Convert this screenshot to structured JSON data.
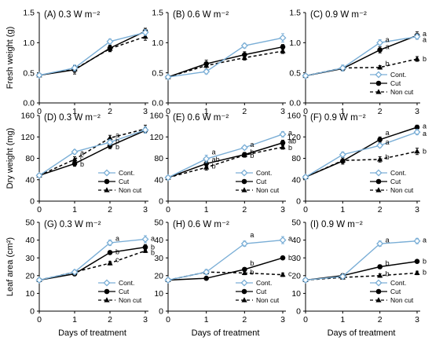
{
  "chart_data": {
    "type": "line",
    "colors": {
      "Cont.": "#7aaed6",
      "Cut": "#000000",
      "Non cut": "#000000"
    },
    "shared_x": {
      "x": [
        0,
        1,
        2,
        3
      ],
      "tick_labels": [
        "0",
        "1",
        "2",
        "3"
      ],
      "label": "Days of treatment",
      "xlim": [
        0,
        3
      ]
    },
    "legend": {
      "entries": [
        "Cont.",
        "Cut",
        "Non cut"
      ],
      "position": "bottom-right"
    },
    "rows": [
      {
        "ylabel": "Fresh weight (g)",
        "ylim": [
          0,
          1.5
        ],
        "yticks": [
          "0.0",
          "0.5",
          "1.0",
          "1.5"
        ],
        "ytick_values": [
          0,
          0.5,
          1.0,
          1.5
        ]
      },
      {
        "ylabel": "Dry weight (mg)",
        "ylim": [
          0,
          160
        ],
        "yticks": [
          "0",
          "40",
          "80",
          "120",
          "160"
        ],
        "ytick_values": [
          0,
          40,
          80,
          120,
          160
        ]
      },
      {
        "ylabel": "Leaf area (cm²)",
        "ylim": [
          0,
          50
        ],
        "yticks": [
          "0",
          "10",
          "20",
          "30",
          "40",
          "50"
        ],
        "ytick_values": [
          0,
          10,
          20,
          30,
          40,
          50
        ]
      }
    ],
    "panels": [
      {
        "id": "A",
        "title": "(A) 0.3 W m⁻²",
        "row": 0,
        "col": 0,
        "legend": false,
        "series": [
          {
            "name": "Cont.",
            "values": [
              0.46,
              0.58,
              1.02,
              1.17
            ],
            "err": [
              0.02,
              0.05,
              0.04,
              0.05
            ]
          },
          {
            "name": "Cut",
            "values": [
              0.46,
              0.55,
              0.91,
              1.19
            ],
            "err": [
              0.02,
              0.07,
              0.05,
              0.05
            ]
          },
          {
            "name": "Non cut",
            "values": [
              0.46,
              0.56,
              0.9,
              1.1
            ],
            "err": [
              0.02,
              0.05,
              0.05,
              0.06
            ]
          }
        ],
        "sig": []
      },
      {
        "id": "B",
        "title": "(B) 0.6 W m⁻²",
        "row": 0,
        "col": 1,
        "legend": false,
        "series": [
          {
            "name": "Cont.",
            "values": [
              0.43,
              0.52,
              0.95,
              1.08
            ],
            "err": [
              0.02,
              0.04,
              0.04,
              0.07
            ]
          },
          {
            "name": "Cut",
            "values": [
              0.43,
              0.65,
              0.8,
              0.93
            ],
            "err": [
              0.02,
              0.06,
              0.05,
              0.04
            ]
          },
          {
            "name": "Non cut",
            "values": [
              0.43,
              0.62,
              0.75,
              0.86
            ],
            "err": [
              0.02,
              0.06,
              0.04,
              0.04
            ]
          }
        ],
        "sig": []
      },
      {
        "id": "C",
        "title": "(C) 0.9 W m⁻²",
        "row": 0,
        "col": 2,
        "legend": true,
        "series": [
          {
            "name": "Cont.",
            "values": [
              0.45,
              0.58,
              1.0,
              1.1
            ],
            "err": [
              0.02,
              0.05,
              0.05,
              0.04
            ]
          },
          {
            "name": "Cut",
            "values": [
              0.45,
              0.57,
              0.88,
              1.12
            ],
            "err": [
              0.02,
              0.04,
              0.05,
              0.06
            ]
          },
          {
            "name": "Non cut",
            "values": [
              0.45,
              0.58,
              0.59,
              0.73
            ],
            "err": [
              0.02,
              0.03,
              0.03,
              0.04
            ]
          }
        ],
        "sig": [
          {
            "label": "a",
            "x": 2,
            "y": 1.05
          },
          {
            "label": "a",
            "x": 2,
            "y": 0.93
          },
          {
            "label": "b",
            "x": 2,
            "y": 0.65
          },
          {
            "label": "a",
            "x": 3,
            "y": 1.15
          },
          {
            "label": "a",
            "x": 3,
            "y": 1.05
          },
          {
            "label": "b",
            "x": 3,
            "y": 0.73
          }
        ]
      },
      {
        "id": "D",
        "title": "(D) 0.3 W m⁻²",
        "row": 1,
        "col": 0,
        "legend": true,
        "series": [
          {
            "name": "Cont.",
            "values": [
              48,
              92,
              110,
              133
            ],
            "err": [
              2,
              4,
              5,
              6
            ]
          },
          {
            "name": "Cut",
            "values": [
              48,
              70,
              103,
              132
            ],
            "err": [
              2,
              5,
              5,
              5
            ]
          },
          {
            "name": "Non cut",
            "values": [
              48,
              78,
              118,
              135
            ],
            "err": [
              2,
              5,
              5,
              7
            ]
          }
        ],
        "sig": [
          {
            "label": "a",
            "x": 1,
            "y": 90
          },
          {
            "label": "c",
            "x": 1,
            "y": 81
          },
          {
            "label": "b",
            "x": 1,
            "y": 69
          },
          {
            "label": "a",
            "x": 2,
            "y": 123
          },
          {
            "label": "b",
            "x": 2,
            "y": 112
          },
          {
            "label": "b",
            "x": 2,
            "y": 101
          }
        ]
      },
      {
        "id": "E",
        "title": "(E) 0.6 W m⁻²",
        "row": 1,
        "col": 1,
        "legend": true,
        "series": [
          {
            "name": "Cont.",
            "values": [
              44,
              79,
              100,
              125
            ],
            "err": [
              2,
              7,
              4,
              5
            ]
          },
          {
            "name": "Cut",
            "values": [
              44,
              70,
              87,
              109
            ],
            "err": [
              2,
              5,
              4,
              5
            ]
          },
          {
            "name": "Non cut",
            "values": [
              44,
              63,
              86,
              101
            ],
            "err": [
              2,
              5,
              4,
              4
            ]
          }
        ],
        "sig": [
          {
            "label": "a",
            "x": 1,
            "y": 92
          },
          {
            "label": "ab",
            "x": 1,
            "y": 78
          },
          {
            "label": "b",
            "x": 1,
            "y": 65
          },
          {
            "label": "a",
            "x": 2,
            "y": 106
          },
          {
            "label": "b",
            "x": 2,
            "y": 92
          },
          {
            "label": "b",
            "x": 2,
            "y": 85
          },
          {
            "label": "a",
            "x": 3,
            "y": 128
          },
          {
            "label": "ab",
            "x": 3,
            "y": 112
          },
          {
            "label": "b",
            "x": 3,
            "y": 100
          }
        ]
      },
      {
        "id": "F",
        "title": "(F) 0.9 W m⁻²",
        "row": 1,
        "col": 2,
        "legend": true,
        "series": [
          {
            "name": "Cont.",
            "values": [
              45,
              87,
              104,
              129
            ],
            "err": [
              2,
              5,
              4,
              5
            ]
          },
          {
            "name": "Cut",
            "values": [
              45,
              75,
              115,
              138
            ],
            "err": [
              2,
              6,
              5,
              4
            ]
          },
          {
            "name": "Non cut",
            "values": [
              45,
              76,
              78,
              93
            ],
            "err": [
              2,
              5,
              5,
              6
            ]
          }
        ],
        "sig": [
          {
            "label": "a",
            "x": 2,
            "y": 128
          },
          {
            "label": "a",
            "x": 2,
            "y": 110
          },
          {
            "label": "b",
            "x": 2,
            "y": 82
          },
          {
            "label": "a",
            "x": 3,
            "y": 140
          },
          {
            "label": "a",
            "x": 3,
            "y": 126
          },
          {
            "label": "b",
            "x": 3,
            "y": 93
          }
        ]
      },
      {
        "id": "G",
        "title": "(G) 0.3 W m⁻²",
        "row": 2,
        "col": 0,
        "legend": true,
        "series": [
          {
            "name": "Cont.",
            "values": [
              17.5,
              22,
              38.5,
              40.5
            ],
            "err": [
              0.5,
              1.2,
              1.5,
              2
            ]
          },
          {
            "name": "Cut",
            "values": [
              17.5,
              21,
              33,
              36
            ],
            "err": [
              0.5,
              1,
              1,
              1.5
            ]
          },
          {
            "name": "Non cut",
            "values": [
              17.5,
              22,
              27,
              34
            ],
            "err": [
              0.5,
              1,
              1,
              1
            ]
          }
        ],
        "sig": [
          {
            "label": "a",
            "x": 2,
            "y": 41
          },
          {
            "label": "b",
            "x": 2,
            "y": 33.5
          },
          {
            "label": "c",
            "x": 2,
            "y": 29
          },
          {
            "label": "a",
            "x": 3,
            "y": 41
          },
          {
            "label": "b",
            "x": 3,
            "y": 36
          },
          {
            "label": "b",
            "x": 3,
            "y": 33
          }
        ]
      },
      {
        "id": "H",
        "title": "(H) 0.6 W m⁻²",
        "row": 2,
        "col": 1,
        "legend": true,
        "series": [
          {
            "name": "Cont.",
            "values": [
              17.5,
              22,
              38,
              40
            ],
            "err": [
              0.5,
              1.5,
              1.5,
              2
            ]
          },
          {
            "name": "Cut",
            "values": [
              17.5,
              18.5,
              23.5,
              30
            ],
            "err": [
              0.5,
              1,
              1,
              1
            ]
          },
          {
            "name": "Non cut",
            "values": [
              17.5,
              22,
              21.5,
              20.5
            ],
            "err": [
              0.5,
              1,
              1,
              1
            ]
          }
        ],
        "sig": [
          {
            "label": "a",
            "x": 2,
            "y": 43
          },
          {
            "label": "b",
            "x": 2,
            "y": 27
          },
          {
            "label": "b",
            "x": 2,
            "y": 22
          },
          {
            "label": "a",
            "x": 3,
            "y": 41
          },
          {
            "label": "b",
            "x": 3,
            "y": 30
          },
          {
            "label": "c",
            "x": 3,
            "y": 21
          }
        ]
      },
      {
        "id": "I",
        "title": "(I) 0.9 W m⁻²",
        "row": 2,
        "col": 2,
        "legend": true,
        "series": [
          {
            "name": "Cont.",
            "values": [
              17.5,
              19.5,
              38,
              39.5
            ],
            "err": [
              0.5,
              1,
              1.5,
              1.5
            ]
          },
          {
            "name": "Cut",
            "values": [
              17.5,
              20,
              25,
              28
            ],
            "err": [
              0.5,
              1,
              1,
              1
            ]
          },
          {
            "name": "Non cut",
            "values": [
              17.5,
              19,
              20,
              21.5
            ],
            "err": [
              0.5,
              1,
              1,
              1
            ]
          }
        ],
        "sig": [
          {
            "label": "a",
            "x": 2,
            "y": 40
          },
          {
            "label": "b",
            "x": 2,
            "y": 27
          },
          {
            "label": "b",
            "x": 2,
            "y": 21
          },
          {
            "label": "a",
            "x": 3,
            "y": 40
          },
          {
            "label": "b",
            "x": 3,
            "y": 28
          },
          {
            "label": "b",
            "x": 3,
            "y": 22
          }
        ]
      }
    ]
  }
}
